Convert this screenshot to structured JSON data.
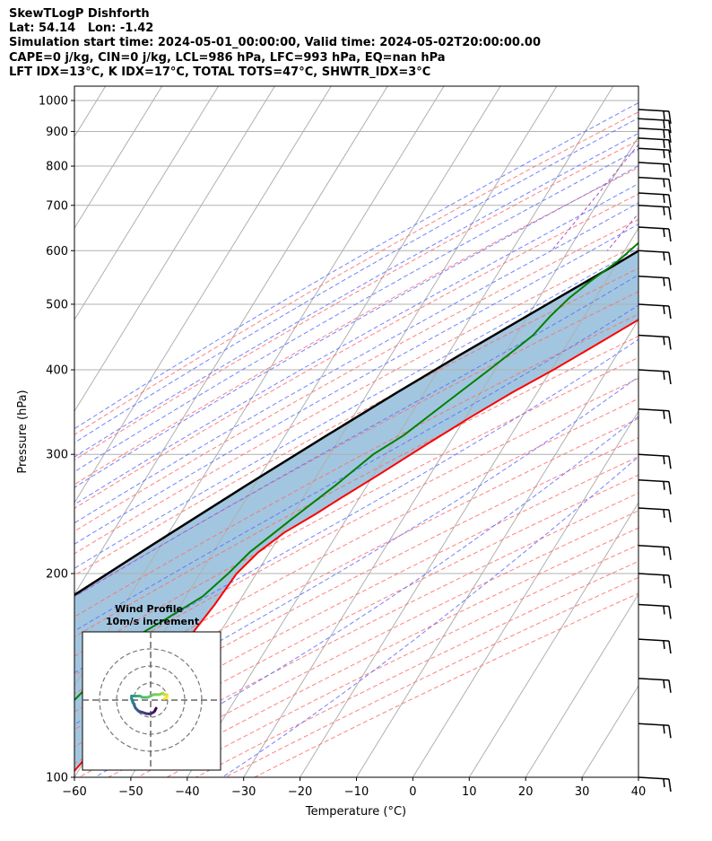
{
  "header": {
    "lines": [
      "SkewTLogP Dishforth",
      "Lat: 54.14   Lon: -1.42",
      "Simulation start time: 2024-05-01_00:00:00, Valid time: 2024-05-02T20:00:00.00",
      "CAPE=0 j/kg, CIN=0 j/kg, LCL=986 hPa, LFC=993 hPa, EQ=nan hPa",
      "LFT IDX=13°C, K IDX=17°C, TOTAL TOTS=47°C, SHWTR_IDX=3°C"
    ]
  },
  "chart_data": {
    "type": "line",
    "subtype": "skew-t log-p",
    "xlabel": "Temperature (°C)",
    "ylabel": "Pressure (hPa)",
    "xlim": [
      -60,
      40
    ],
    "ylim": [
      1050,
      100
    ],
    "y_scale": "log",
    "x_ticks": [
      -60,
      -50,
      -40,
      -30,
      -20,
      -10,
      0,
      10,
      20,
      30,
      40
    ],
    "x_tick_labels": [
      "−60",
      "−50",
      "−40",
      "−30",
      "−20",
      "−10",
      "0",
      "10",
      "20",
      "30",
      "40"
    ],
    "y_ticks": [
      1000,
      900,
      800,
      700,
      600,
      500,
      400,
      300,
      200,
      100
    ],
    "y_tick_labels": [
      "1000",
      "900",
      "800",
      "700",
      "600",
      "500",
      "400",
      "300",
      "200",
      "100"
    ],
    "grid": true,
    "colors": {
      "temperature": "#ff0000",
      "dewpoint": "#008000",
      "parcel": "#000000",
      "shade": "#a2c6df",
      "isotherm": "#b0b0b0",
      "dry_adiabat": "#ff6b6b",
      "moist_adiabat": "#5a6cff",
      "mixing_ratio": "#a040c0"
    },
    "series": [
      {
        "key": "temperature",
        "pressure": [
          970,
          945,
          920,
          900,
          860,
          800,
          750,
          700,
          640,
          580,
          520,
          470,
          430,
          400,
          370,
          340,
          310,
          280,
          260,
          245,
          230,
          215,
          200,
          180,
          160,
          140,
          120,
          100
        ],
        "temperature": [
          10.7,
          12.4,
          13.4,
          13.5,
          12.8,
          11.3,
          10.0,
          7.9,
          4.8,
          0.4,
          -5.2,
          -10.5,
          -15.5,
          -19.6,
          -24.5,
          -29.2,
          -34.0,
          -39.1,
          -43.0,
          -46.0,
          -49.5,
          -52.0,
          -53.5,
          -54.0,
          -55.0,
          -56.0,
          -58.5,
          -61.0
        ]
      },
      {
        "key": "dewpoint",
        "pressure": [
          970,
          940,
          900,
          860,
          820,
          790,
          760,
          720,
          680,
          660,
          620,
          580,
          540,
          510,
          480,
          450,
          430,
          400,
          360,
          320,
          300,
          270,
          240,
          215,
          200,
          185,
          170,
          160,
          140,
          120,
          100
        ],
        "temperature": [
          9.1,
          9.7,
          10.2,
          9.8,
          8.3,
          6.6,
          2.6,
          -5.6,
          -13.7,
          -16.9,
          -18.2,
          -20.0,
          -22.8,
          -24.7,
          -26.0,
          -27.0,
          -28.5,
          -31.0,
          -34.8,
          -39.0,
          -42.3,
          -45.6,
          -49.8,
          -53.5,
          -55.0,
          -57.0,
          -61.5,
          -65.0,
          -67.0,
          -70.0,
          -74.0
        ]
      },
      {
        "key": "parcel",
        "pressure": [
          993,
          960,
          920,
          870,
          820,
          770,
          720,
          670,
          620,
          570,
          520,
          470,
          420,
          370,
          320,
          270,
          220,
          180,
          150,
          125,
          100
        ],
        "temperature": [
          8.8,
          7.1,
          5.0,
          2.2,
          -0.8,
          -4.0,
          -7.5,
          -11.4,
          -15.7,
          -20.3,
          -25.6,
          -31.4,
          -37.9,
          -44.9,
          -52.6,
          -61.4,
          -71.7,
          -81.5,
          -89.7,
          -97.5,
          -106.9
        ]
      }
    ],
    "wind_barbs": {
      "pressure": [
        970,
        940,
        910,
        880,
        850,
        810,
        770,
        730,
        700,
        650,
        600,
        550,
        500,
        450,
        400,
        350,
        300,
        275,
        250,
        220,
        200,
        180,
        160,
        140,
        120,
        100
      ]
    },
    "hodograph": {
      "title": "Wind Profile",
      "subtitle": "10m/s increment",
      "rings": [
        10,
        20,
        30
      ],
      "u": [
        2,
        1.5,
        1,
        0,
        -1.5,
        -3,
        -4.5,
        -5.5,
        -6,
        -6,
        -6.5,
        -7,
        -7,
        -6,
        -5,
        -4,
        -3,
        -1,
        1,
        3,
        4.5,
        5,
        6,
        6,
        5
      ],
      "v": [
        -3,
        -4,
        -4.5,
        -5,
        -5,
        -4.5,
        -4,
        -3,
        -2,
        -1.5,
        -1,
        0.5,
        1.5,
        1.5,
        1.5,
        1.5,
        1,
        1,
        2,
        2,
        2.5,
        2,
        2,
        1,
        0.5
      ]
    }
  }
}
